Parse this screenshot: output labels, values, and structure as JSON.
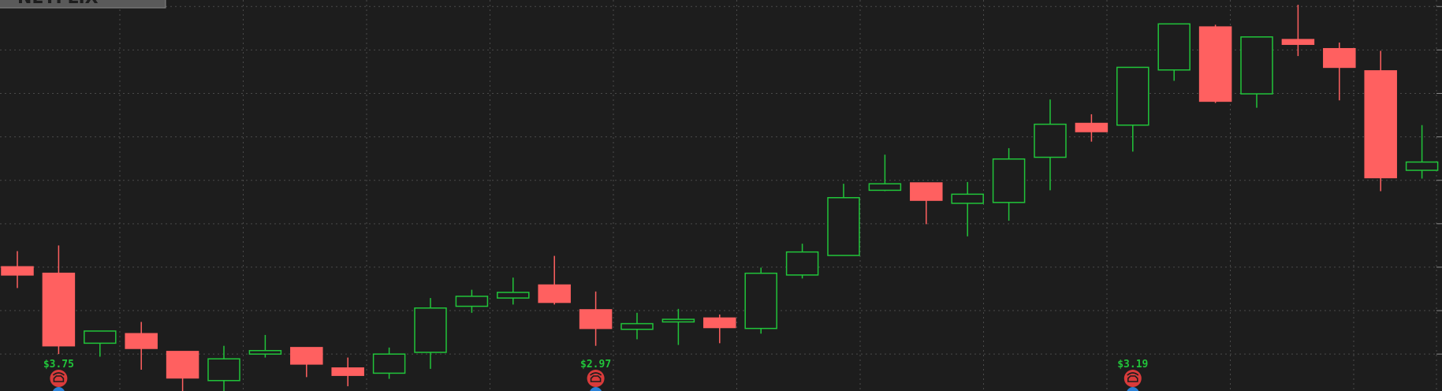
{
  "chart_data": {
    "type": "candlestick",
    "logo": "NETFLIX",
    "open": [
      3.01,
      2.86,
      1.25,
      1.47,
      1.06,
      0.39,
      1.0,
      1.15,
      0.68,
      0.56,
      1.04,
      2.1,
      2.29,
      2.59,
      2.02,
      1.57,
      1.74,
      1.83,
      1.59,
      2.82,
      3.27,
      4.77,
      4.94,
      4.47,
      4.49,
      5.53,
      6.31,
      6.27,
      7.54,
      8.53,
      6.99,
      8.24,
      8.03,
      7.52,
      5.23
    ],
    "high": [
      3.37,
      3.5,
      1.53,
      1.74,
      1.06,
      1.19,
      1.44,
      1.15,
      0.92,
      1.15,
      2.29,
      2.48,
      2.76,
      3.26,
      2.44,
      1.95,
      2.04,
      1.91,
      2.99,
      3.54,
      4.92,
      5.59,
      4.94,
      4.96,
      5.74,
      6.86,
      6.52,
      7.6,
      8.6,
      8.58,
      8.3,
      9.04,
      8.17,
      7.98,
      6.27
    ],
    "low": [
      2.52,
      1.0,
      0.94,
      0.64,
      0.15,
      0.15,
      0.92,
      0.47,
      0.26,
      0.43,
      0.66,
      1.95,
      2.14,
      2.14,
      1.19,
      1.34,
      1.21,
      1.25,
      1.47,
      2.74,
      3.27,
      4.75,
      3.99,
      3.71,
      4.07,
      4.77,
      5.89,
      5.66,
      7.29,
      6.78,
      6.67,
      7.86,
      6.84,
      4.75,
      5.04
    ],
    "close": [
      2.82,
      1.19,
      1.53,
      1.13,
      0.45,
      0.89,
      1.08,
      0.77,
      0.51,
      1.0,
      2.06,
      2.33,
      2.42,
      2.19,
      1.59,
      1.7,
      1.8,
      1.61,
      2.86,
      3.35,
      4.6,
      4.92,
      4.54,
      4.68,
      5.49,
      6.29,
      6.12,
      7.6,
      8.6,
      6.82,
      8.3,
      8.13,
      7.6,
      5.06,
      5.42
    ],
    "up_color": "#21c43a",
    "down_color": "#ff6060",
    "ylim": [
      0.15,
      9.15
    ],
    "yticks": [
      1,
      2,
      3,
      4,
      5,
      6,
      7,
      8,
      9
    ],
    "grid": true,
    "annotations": [
      "$3.75",
      "$2.97",
      "$3.19"
    ]
  }
}
